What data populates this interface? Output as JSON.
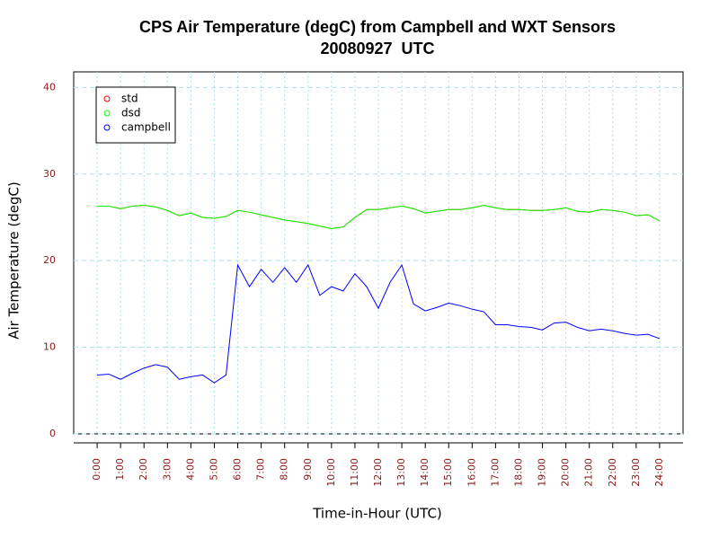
{
  "chart_data": {
    "type": "line",
    "title": "CPS Air Temperature (degC) from Campbell and WXT Sensors",
    "subtitle": "20080927  UTC",
    "x_label": "Time-in-Hour (UTC)",
    "y_label": "Air Temperature (degC)",
    "x": [
      0,
      0.5,
      1,
      1.5,
      2,
      2.5,
      3,
      3.5,
      4,
      4.5,
      5,
      5.5,
      6,
      6.5,
      7,
      7.5,
      8,
      8.5,
      9,
      9.5,
      10,
      10.5,
      11,
      11.5,
      12,
      12.5,
      13,
      13.5,
      14,
      14.5,
      15,
      15.5,
      16,
      16.5,
      17,
      17.5,
      18,
      18.5,
      19,
      19.5,
      20,
      20.5,
      21,
      21.5,
      22,
      22.5,
      23,
      23.5,
      24
    ],
    "series": [
      {
        "name": "std",
        "color": "#ff0000",
        "values": [
          26.3,
          26.3,
          26.0,
          26.3,
          26.4,
          26.2,
          25.8,
          25.2,
          25.5,
          25.0,
          24.9,
          25.1,
          25.8,
          25.6,
          25.3,
          25.0,
          24.7,
          24.5,
          24.3,
          24.0,
          23.7,
          23.9,
          25.0,
          25.9,
          25.9,
          26.1,
          26.3,
          26.0,
          25.5,
          25.7,
          25.9,
          25.9,
          26.1,
          26.4,
          26.1,
          25.9,
          25.9,
          25.8,
          25.8,
          25.9,
          26.1,
          25.7,
          25.6,
          25.9,
          25.8,
          25.6,
          25.2,
          25.3,
          24.6
        ]
      },
      {
        "name": "dsd",
        "color": "#00ff00",
        "values": [
          26.3,
          26.3,
          26.0,
          26.3,
          26.4,
          26.2,
          25.8,
          25.2,
          25.5,
          25.0,
          24.9,
          25.1,
          25.8,
          25.6,
          25.3,
          25.0,
          24.7,
          24.5,
          24.3,
          24.0,
          23.7,
          23.9,
          25.0,
          25.9,
          25.9,
          26.1,
          26.3,
          26.0,
          25.5,
          25.7,
          25.9,
          25.9,
          26.1,
          26.4,
          26.1,
          25.9,
          25.9,
          25.8,
          25.8,
          25.9,
          26.1,
          25.7,
          25.6,
          25.9,
          25.8,
          25.6,
          25.2,
          25.3,
          24.6
        ]
      },
      {
        "name": "campbell",
        "color": "#0000ff",
        "values": [
          6.8,
          6.9,
          6.3,
          7.0,
          7.6,
          8.0,
          7.7,
          6.3,
          6.6,
          6.8,
          5.9,
          6.8,
          19.5,
          17.0,
          19.0,
          17.5,
          19.2,
          17.5,
          19.5,
          16.0,
          17.0,
          16.5,
          18.5,
          17.0,
          14.5,
          17.5,
          19.5,
          15.0,
          14.2,
          14.6,
          15.1,
          14.8,
          14.4,
          14.1,
          12.6,
          12.6,
          12.4,
          12.3,
          12.0,
          12.8,
          12.9,
          12.3,
          11.9,
          12.1,
          11.9,
          11.6,
          11.4,
          11.5,
          11.0
        ]
      }
    ],
    "xlim": [
      -1,
      25
    ],
    "ylim": [
      0,
      41.8
    ],
    "xticks": [
      {
        "value": 0,
        "label": "0:00"
      },
      {
        "value": 1,
        "label": "1:00"
      },
      {
        "value": 2,
        "label": "2:00"
      },
      {
        "value": 3,
        "label": "3:00"
      },
      {
        "value": 4,
        "label": "4:00"
      },
      {
        "value": 5,
        "label": "5:00"
      },
      {
        "value": 6,
        "label": "6:00"
      },
      {
        "value": 7,
        "label": "7:00"
      },
      {
        "value": 8,
        "label": "8:00"
      },
      {
        "value": 9,
        "label": "9:00"
      },
      {
        "value": 10,
        "label": "10:00"
      },
      {
        "value": 11,
        "label": "11:00"
      },
      {
        "value": 12,
        "label": "12:00"
      },
      {
        "value": 13,
        "label": "13:00"
      },
      {
        "value": 14,
        "label": "14:00"
      },
      {
        "value": 15,
        "label": "15:00"
      },
      {
        "value": 16,
        "label": "16:00"
      },
      {
        "value": 17,
        "label": "17:00"
      },
      {
        "value": 18,
        "label": "18:00"
      },
      {
        "value": 19,
        "label": "19:00"
      },
      {
        "value": 20,
        "label": "20:00"
      },
      {
        "value": 21,
        "label": "21:00"
      },
      {
        "value": 22,
        "label": "22:00"
      },
      {
        "value": 23,
        "label": "23:00"
      },
      {
        "value": 24,
        "label": "24:00"
      }
    ],
    "yticks": [
      0,
      10,
      20,
      30,
      40
    ],
    "grid": true,
    "legend_position": "topleft"
  }
}
